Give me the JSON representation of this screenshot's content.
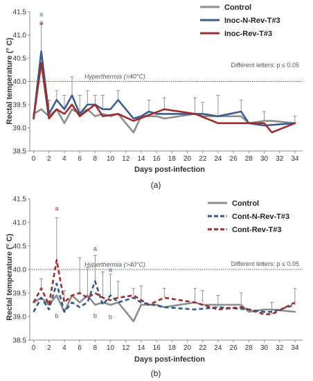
{
  "chart_data": [
    {
      "type": "line",
      "panel_label": "(a)",
      "xlabel": "Days post-infection",
      "ylabel": "Rectal temperature (° C)",
      "xlim": [
        -0.5,
        35
      ],
      "ylim": [
        38.5,
        41.5
      ],
      "xticks": [
        0,
        2,
        4,
        6,
        8,
        10,
        12,
        14,
        16,
        18,
        20,
        22,
        24,
        26,
        28,
        30,
        32,
        34
      ],
      "yticks": [
        38.5,
        39,
        39.5,
        40,
        40.5,
        41,
        41.5
      ],
      "legend_position": "top-right",
      "note": "Different letters: p ≤ 0.05",
      "reference_line": {
        "y": 40,
        "label": "Hyperthermia (>40°C)"
      },
      "series": [
        {
          "name": "Control",
          "color": "#8c8c8c",
          "dash": "solid",
          "x": [
            0,
            1,
            2,
            3,
            4,
            5,
            6,
            7,
            8,
            9,
            10,
            11,
            13,
            14,
            15,
            16,
            17,
            21,
            22,
            24,
            27,
            28,
            30,
            31,
            34
          ],
          "y": [
            39.3,
            39.4,
            39.25,
            39.4,
            39.1,
            39.4,
            39.3,
            39.4,
            39.25,
            39.3,
            39.25,
            39.3,
            38.9,
            39.25,
            39.25,
            39.25,
            39.2,
            39.3,
            39.25,
            39.25,
            39.25,
            39.1,
            39.15,
            39.15,
            39.1
          ]
        },
        {
          "name": "Inoc-N-Rev-T#3",
          "color": "#3a5f8f",
          "dash": "solid",
          "x": [
            0,
            1,
            2,
            3,
            4,
            5,
            6,
            7,
            8,
            9,
            10,
            11,
            13,
            14,
            15,
            16,
            17,
            21,
            22,
            24,
            27,
            28,
            30,
            34
          ],
          "y": [
            39.2,
            40.65,
            39.3,
            39.6,
            39.4,
            39.7,
            39.3,
            39.5,
            39.5,
            39.4,
            39.4,
            39.6,
            39.2,
            39.25,
            39.35,
            39.3,
            39.3,
            39.3,
            39.3,
            39.25,
            39.35,
            39.1,
            39.05,
            39.1
          ]
        },
        {
          "name": "Inoc-Rev-T#3",
          "color": "#9e2a2b",
          "dash": "solid",
          "x": [
            0,
            1,
            2,
            3,
            4,
            5,
            6,
            8,
            9,
            11,
            13,
            17,
            21,
            24,
            27,
            30,
            31,
            34
          ],
          "y": [
            39.2,
            40.4,
            39.2,
            39.4,
            39.3,
            39.5,
            39.25,
            39.5,
            39.25,
            39.3,
            39.15,
            39.4,
            39.3,
            39.1,
            39.1,
            39.1,
            38.9,
            39.1
          ]
        }
      ],
      "error_bars": [
        {
          "x": 1,
          "y": 40.65,
          "upper": 41.25
        },
        {
          "x": 2,
          "y": 39.3,
          "upper": 39.6
        },
        {
          "x": 3,
          "y": 39.6,
          "upper": 39.8
        },
        {
          "x": 4,
          "y": 39.4,
          "upper": 39.7
        },
        {
          "x": 5,
          "y": 39.7,
          "upper": 40.1
        },
        {
          "x": 6,
          "y": 39.3,
          "upper": 39.7
        },
        {
          "x": 7,
          "y": 39.5,
          "upper": 39.8
        },
        {
          "x": 8,
          "y": 39.5,
          "upper": 39.7
        },
        {
          "x": 9,
          "y": 39.4,
          "upper": 39.7
        },
        {
          "x": 11,
          "y": 39.6,
          "upper": 39.8
        },
        {
          "x": 15,
          "y": 39.35,
          "upper": 39.6
        },
        {
          "x": 17,
          "y": 39.4,
          "upper": 39.65
        },
        {
          "x": 21,
          "y": 39.3,
          "upper": 39.65
        },
        {
          "x": 22,
          "y": 39.3,
          "upper": 39.55
        },
        {
          "x": 24,
          "y": 39.25,
          "upper": 39.7
        },
        {
          "x": 27,
          "y": 39.35,
          "upper": 39.6
        },
        {
          "x": 30,
          "y": 39.15,
          "upper": 39.35
        },
        {
          "x": 34,
          "y": 39.1,
          "upper": 39.25
        }
      ],
      "annotations": [
        {
          "x": 1,
          "y": 41.4,
          "text": "a",
          "color": "#3a5f8f"
        },
        {
          "x": 1,
          "y": 41.22,
          "text": "a",
          "color": "#9e2a2b"
        }
      ]
    },
    {
      "type": "line",
      "panel_label": "(b)",
      "xlabel": "Days post-infection",
      "ylabel": "Rectal temperature (° C)",
      "xlim": [
        -0.5,
        35
      ],
      "ylim": [
        38.5,
        41.5
      ],
      "xticks": [
        0,
        2,
        4,
        6,
        8,
        10,
        12,
        14,
        16,
        18,
        20,
        22,
        24,
        26,
        28,
        30,
        32,
        34
      ],
      "yticks": [
        38.5,
        39,
        39.5,
        40,
        40.5,
        41,
        41.5
      ],
      "legend_position": "top-right",
      "note": "Different letters: p ≤ 0.05",
      "reference_line": {
        "y": 40,
        "label": "Hyperthermia (>40°C)"
      },
      "series": [
        {
          "name": "Control",
          "color": "#8c8c8c",
          "dash": "solid",
          "x": [
            0,
            1,
            2,
            3,
            4,
            5,
            6,
            7,
            8,
            9,
            10,
            11,
            13,
            14,
            15,
            16,
            17,
            21,
            22,
            24,
            27,
            28,
            30,
            31,
            34
          ],
          "y": [
            39.3,
            39.4,
            39.25,
            39.45,
            39.1,
            39.45,
            39.3,
            39.45,
            39.25,
            39.3,
            39.25,
            39.3,
            38.9,
            39.25,
            39.25,
            39.25,
            39.2,
            39.3,
            39.25,
            39.25,
            39.25,
            39.1,
            39.15,
            39.15,
            39.1
          ]
        },
        {
          "name": "Cont-N-Rev-T#3",
          "color": "#2e5a8c",
          "dash": "dashed",
          "x": [
            0,
            1,
            2,
            3,
            4,
            5,
            6,
            7,
            8,
            9,
            10,
            11,
            13,
            14,
            17,
            21,
            24,
            28,
            30,
            31,
            33,
            34
          ],
          "y": [
            39.1,
            39.4,
            39.15,
            39.7,
            39.1,
            39.3,
            39.2,
            39.3,
            39.75,
            39.25,
            39.45,
            39.3,
            39.4,
            39.3,
            39.2,
            39.15,
            39.2,
            39.15,
            39.1,
            39.1,
            39.2,
            39.25
          ]
        },
        {
          "name": "Cont-Rev-T#3",
          "color": "#9e2a2b",
          "dash": "dashed",
          "x": [
            0,
            1,
            2,
            3,
            4,
            5,
            6,
            7,
            8,
            9,
            10,
            11,
            13,
            15,
            17,
            21,
            24,
            27,
            30,
            31,
            34
          ],
          "y": [
            39.3,
            39.6,
            39.25,
            40.2,
            39.3,
            39.45,
            39.5,
            39.4,
            39.5,
            39.4,
            39.35,
            39.4,
            39.45,
            39.25,
            39.4,
            39.3,
            39.15,
            39.2,
            39.05,
            39.05,
            39.3
          ]
        }
      ],
      "error_bars": [
        {
          "x": 1,
          "y": 39.6,
          "upper": 39.8
        },
        {
          "x": 3,
          "y": 40.2,
          "upper": 41.1
        },
        {
          "x": 4,
          "y": 39.3,
          "upper": 39.55
        },
        {
          "x": 6,
          "y": 39.5,
          "upper": 40.25
        },
        {
          "x": 7,
          "y": 39.4,
          "upper": 40.05
        },
        {
          "x": 8,
          "y": 39.75,
          "upper": 40.3
        },
        {
          "x": 9,
          "y": 39.4,
          "upper": 39.95
        },
        {
          "x": 10,
          "y": 39.45,
          "upper": 39.9
        },
        {
          "x": 11,
          "y": 39.4,
          "upper": 39.75
        },
        {
          "x": 13,
          "y": 39.45,
          "upper": 39.6
        },
        {
          "x": 14,
          "y": 39.3,
          "upper": 39.65
        },
        {
          "x": 17,
          "y": 39.4,
          "upper": 39.6
        },
        {
          "x": 21,
          "y": 39.3,
          "upper": 39.6
        },
        {
          "x": 22,
          "y": 39.3,
          "upper": 39.55
        },
        {
          "x": 24,
          "y": 39.2,
          "upper": 39.45
        },
        {
          "x": 27,
          "y": 39.2,
          "upper": 39.5
        },
        {
          "x": 31,
          "y": 39.05,
          "upper": 39.3
        },
        {
          "x": 34,
          "y": 39.25,
          "upper": 39.6
        }
      ],
      "annotations": [
        {
          "x": 3,
          "y": 41.25,
          "text": "a",
          "color": "#9e2a2b"
        },
        {
          "x": 3,
          "y": 38.97,
          "text": "b",
          "color": "#555555"
        },
        {
          "x": 8,
          "y": 40.4,
          "text": "a",
          "color": "#2e5a8c"
        },
        {
          "x": 8,
          "y": 38.97,
          "text": "b",
          "color": "#555555"
        },
        {
          "x": 10,
          "y": 39.95,
          "text": "a",
          "color": "#2e5a8c"
        },
        {
          "x": 10,
          "y": 38.95,
          "text": "b",
          "color": "#555555"
        }
      ]
    }
  ]
}
